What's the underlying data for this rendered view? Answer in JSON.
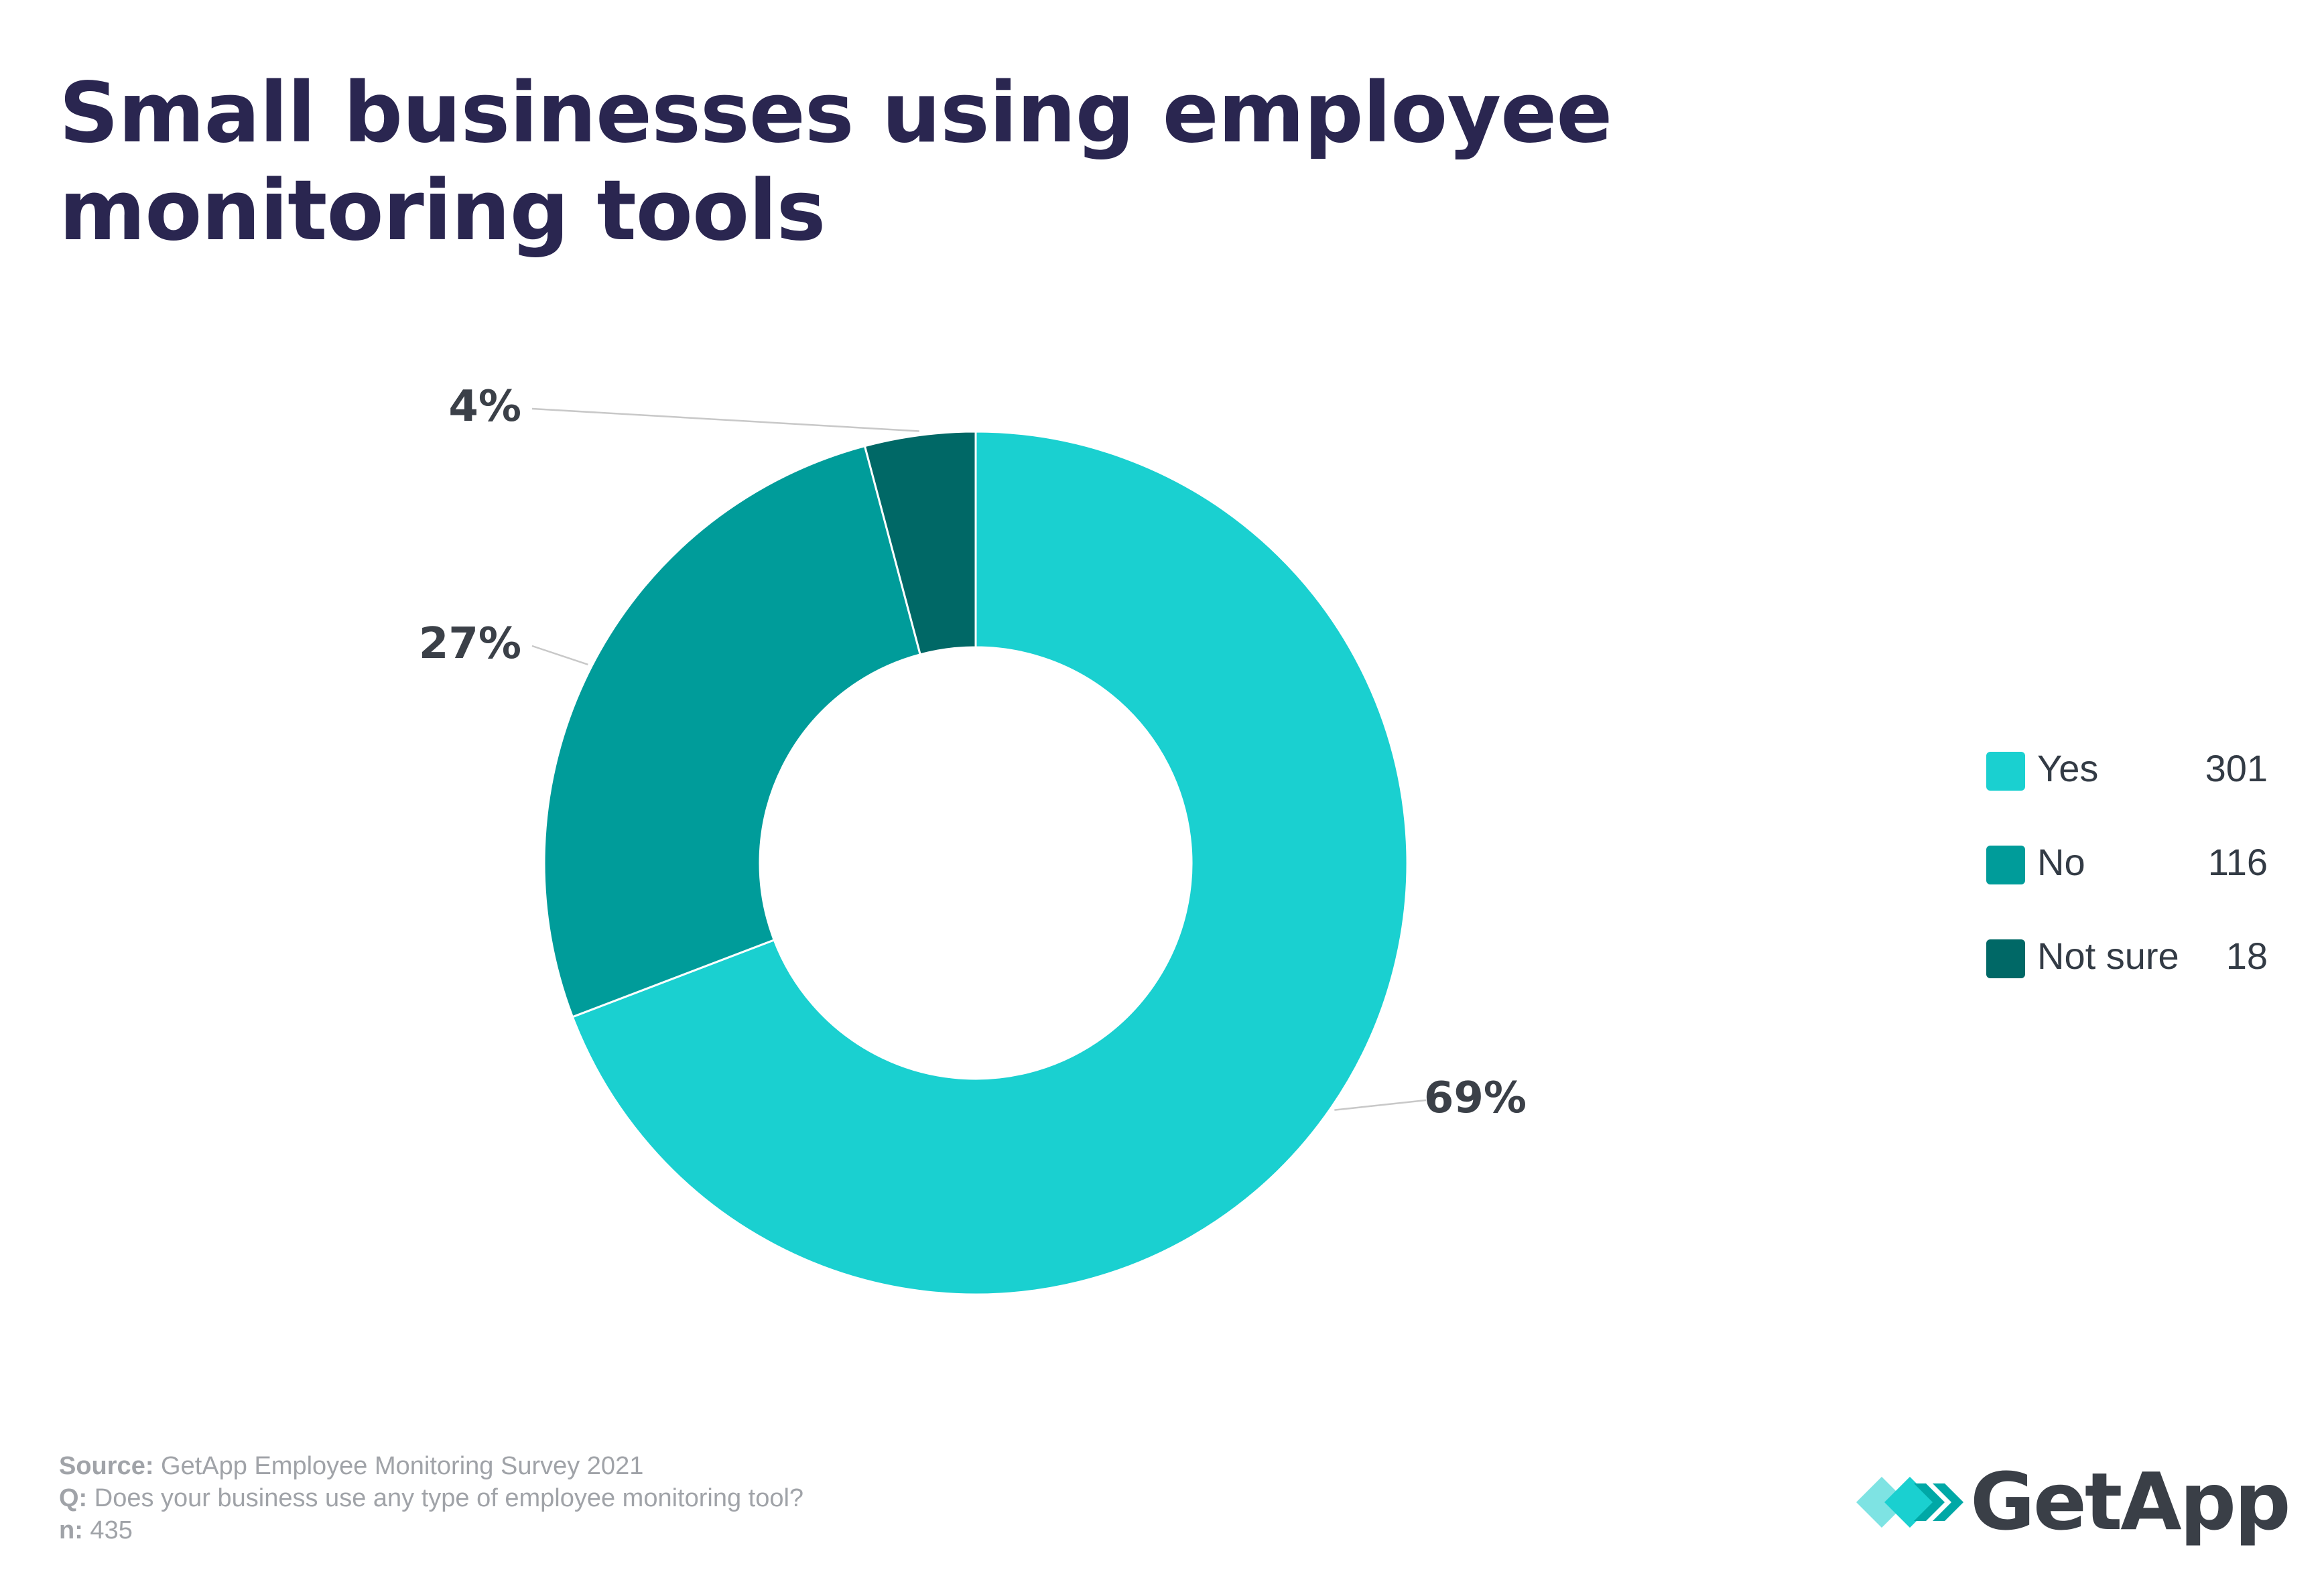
{
  "title": {
    "line1": "Small businesses using employee",
    "line2": "monitoring tools"
  },
  "chart_data": {
    "type": "pie",
    "variant": "donut",
    "categories": [
      "Yes",
      "No",
      "Not sure"
    ],
    "values": [
      301,
      116,
      18
    ],
    "percent_labels": [
      "69%",
      "27%",
      "4%"
    ],
    "colors": [
      "#1ad0d0",
      "#009c9a",
      "#006866"
    ],
    "legend_position": "right"
  },
  "legend": [
    {
      "label": "Yes",
      "value": "301",
      "color": "#1ad0d0"
    },
    {
      "label": "No",
      "value": "116",
      "color": "#009c9a"
    },
    {
      "label": "Not sure",
      "value": "18",
      "color": "#006866"
    }
  ],
  "footer": {
    "source_key": "Source:",
    "source_text": " GetApp Employee Monitoring Survey 2021",
    "q_key": "Q:",
    "q_text": " Does your business use any type of employee monitoring tool?",
    "n_key": "n:",
    "n_text": " 435"
  },
  "logo": {
    "text": "GetApp",
    "colors": [
      "#7ee3e3",
      "#1ad0d0",
      "#00a8a6"
    ]
  }
}
